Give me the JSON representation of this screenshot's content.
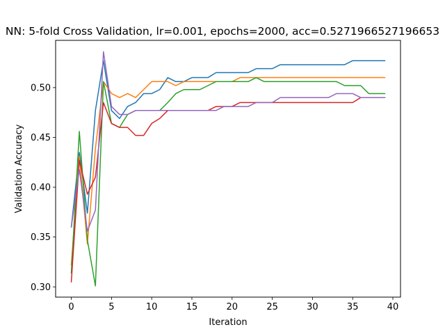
{
  "chart_data": {
    "type": "line",
    "title": "NN: 5-fold Cross Validation, lr=0.001, epochs=2000, acc=0.5271966527196653",
    "xlabel": "Iteration",
    "ylabel": "Validation Accuracy",
    "xlim": [
      -1.95,
      40.95
    ],
    "ylim": [
      0.2897,
      0.5474
    ],
    "xticks": [
      0,
      5,
      10,
      15,
      20,
      25,
      30,
      35,
      40
    ],
    "yticks": [
      0.3,
      0.35,
      0.4,
      0.45,
      0.5
    ],
    "ytick_labels": [
      "0.30",
      "0.35",
      "0.40",
      "0.45",
      "0.50"
    ],
    "x": [
      0,
      1,
      2,
      3,
      4,
      5,
      6,
      7,
      8,
      9,
      10,
      11,
      12,
      13,
      14,
      15,
      16,
      17,
      18,
      19,
      20,
      21,
      22,
      23,
      24,
      25,
      26,
      27,
      28,
      29,
      30,
      31,
      32,
      33,
      34,
      35,
      36,
      37,
      38,
      39
    ],
    "grid": false,
    "legend": "none",
    "series": [
      {
        "color": "#1f77b4",
        "values": [
          0.36,
          0.435,
          0.374,
          0.477,
          0.527,
          0.477,
          0.469,
          0.481,
          0.485,
          0.494,
          0.494,
          0.498,
          0.51,
          0.506,
          0.506,
          0.51,
          0.51,
          0.51,
          0.515,
          0.515,
          0.515,
          0.515,
          0.515,
          0.519,
          0.519,
          0.519,
          0.523,
          0.523,
          0.523,
          0.523,
          0.523,
          0.523,
          0.523,
          0.523,
          0.523,
          0.527,
          0.527,
          0.527,
          0.527,
          0.527
        ]
      },
      {
        "color": "#ff7f0e",
        "values": [
          0.322,
          0.431,
          0.343,
          0.439,
          0.506,
          0.494,
          0.49,
          0.494,
          0.49,
          0.498,
          0.506,
          0.506,
          0.506,
          0.502,
          0.506,
          0.506,
          0.506,
          0.506,
          0.506,
          0.506,
          0.506,
          0.51,
          0.51,
          0.51,
          0.51,
          0.51,
          0.51,
          0.51,
          0.51,
          0.51,
          0.51,
          0.51,
          0.51,
          0.51,
          0.51,
          0.51,
          0.51,
          0.51,
          0.51,
          0.51
        ]
      },
      {
        "color": "#2ca02c",
        "values": [
          0.314,
          0.456,
          0.347,
          0.301,
          0.506,
          0.464,
          0.46,
          0.473,
          0.477,
          0.477,
          0.477,
          0.477,
          0.485,
          0.494,
          0.498,
          0.498,
          0.498,
          0.502,
          0.506,
          0.506,
          0.506,
          0.506,
          0.506,
          0.51,
          0.506,
          0.506,
          0.506,
          0.506,
          0.506,
          0.506,
          0.506,
          0.506,
          0.506,
          0.506,
          0.502,
          0.502,
          0.502,
          0.494,
          0.494,
          0.494
        ]
      },
      {
        "color": "#d62728",
        "values": [
          0.305,
          0.427,
          0.393,
          0.41,
          0.485,
          0.464,
          0.46,
          0.46,
          0.452,
          0.452,
          0.464,
          0.469,
          0.477,
          0.477,
          0.477,
          0.477,
          0.477,
          0.477,
          0.481,
          0.481,
          0.481,
          0.485,
          0.485,
          0.485,
          0.485,
          0.485,
          0.485,
          0.485,
          0.485,
          0.485,
          0.485,
          0.485,
          0.485,
          0.485,
          0.485,
          0.485,
          0.49,
          0.49,
          0.49,
          0.49
        ]
      },
      {
        "color": "#9467bd",
        "values": [
          0.36,
          0.418,
          0.356,
          0.377,
          0.536,
          0.481,
          0.473,
          0.473,
          0.477,
          0.477,
          0.477,
          0.477,
          0.477,
          0.477,
          0.477,
          0.477,
          0.477,
          0.477,
          0.477,
          0.481,
          0.481,
          0.481,
          0.481,
          0.485,
          0.485,
          0.485,
          0.49,
          0.49,
          0.49,
          0.49,
          0.49,
          0.49,
          0.49,
          0.494,
          0.494,
          0.494,
          0.49,
          0.49,
          0.49,
          0.49
        ]
      }
    ]
  }
}
